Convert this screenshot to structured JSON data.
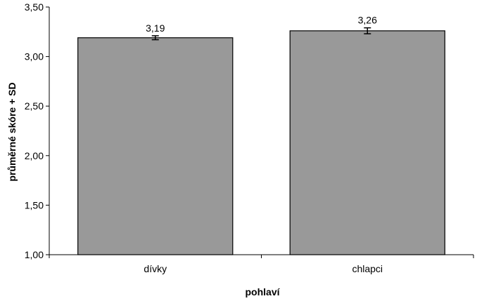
{
  "chart_data": {
    "type": "bar",
    "categories": [
      "dívky",
      "chlapci"
    ],
    "values": [
      3.19,
      3.26
    ],
    "value_labels": [
      "3,19",
      "3,26"
    ],
    "error_sd": [
      0.02,
      0.03
    ],
    "xlabel": "pohlaví",
    "ylabel": "průměrné skóre + SD",
    "ylim": [
      1.0,
      3.5
    ],
    "yticks": [
      1.0,
      1.5,
      2.0,
      2.5,
      3.0,
      3.5
    ],
    "ytick_labels": [
      "1,00",
      "1,50",
      "2,00",
      "2,50",
      "3,00",
      "3,50"
    ],
    "grid": false,
    "legend": "none",
    "bar_color": "#999999",
    "bar_edge_color": "#000000"
  }
}
